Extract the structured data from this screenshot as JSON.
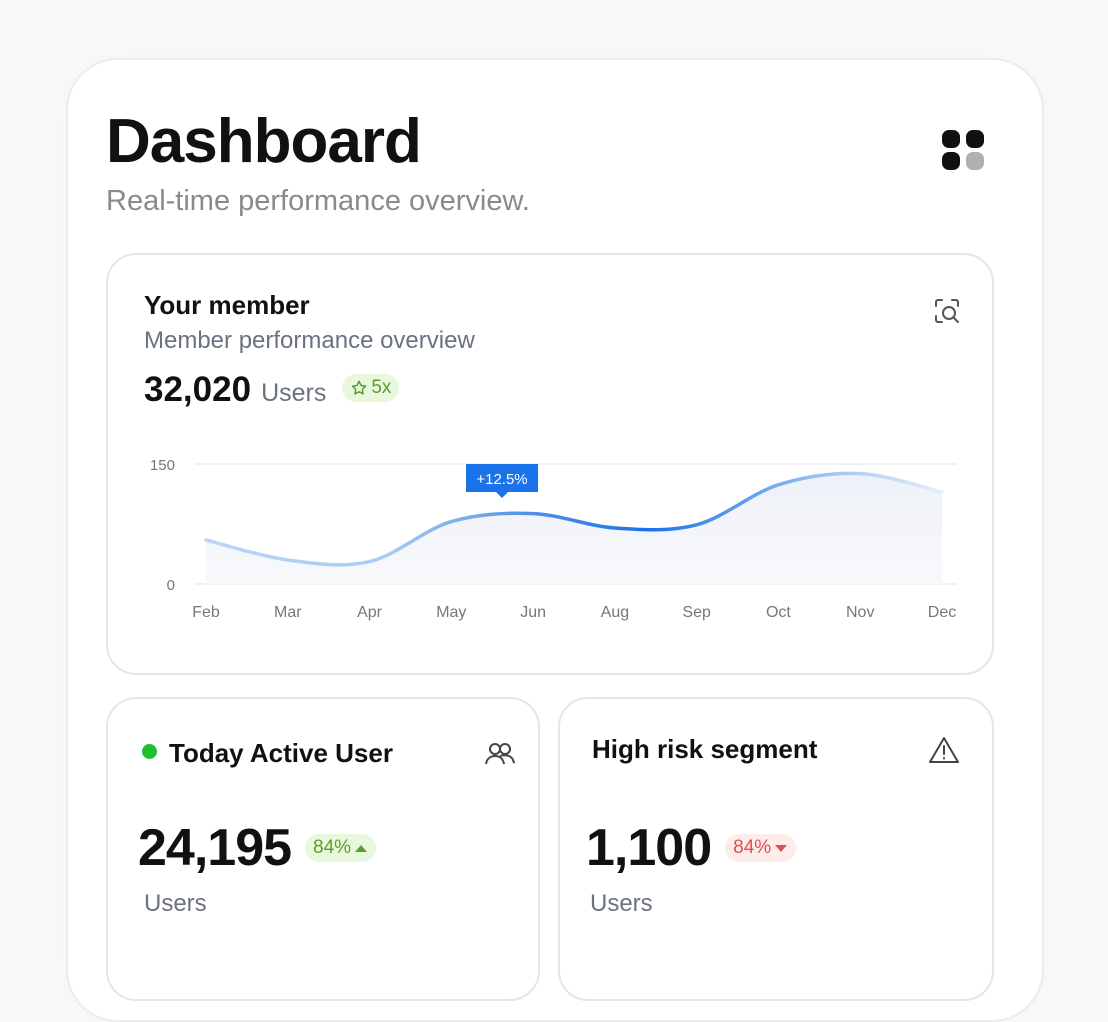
{
  "header": {
    "title": "Dashboard",
    "subtitle": "Real-time performance overview."
  },
  "member_card": {
    "title": "Your member",
    "subtitle": "Member performance overview",
    "total": "32,020",
    "unit": "Users",
    "badge": "5x",
    "chart": {
      "type": "line",
      "categories": [
        "Feb",
        "Mar",
        "Apr",
        "May",
        "Jun",
        "Aug",
        "Sep",
        "Oct",
        "Nov",
        "Dec"
      ],
      "values": [
        55,
        30,
        28,
        78,
        88,
        70,
        74,
        124,
        138,
        115
      ],
      "color": "#1a73e8",
      "ylim": [
        0,
        150
      ],
      "yticks": [
        0,
        150
      ],
      "grid": true,
      "annotation": "+12.5%"
    }
  },
  "active_card": {
    "title": "Today Active User",
    "value": "24,195",
    "change": "84%",
    "unit": "Users"
  },
  "risk_card": {
    "title": "High risk segment",
    "value": "1,100",
    "change": "84%",
    "unit": "Users"
  }
}
